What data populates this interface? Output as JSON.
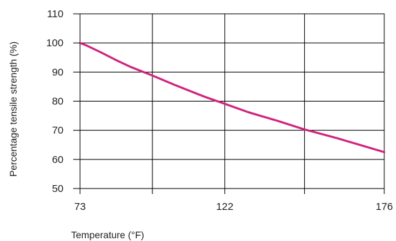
{
  "chart_data": {
    "type": "line",
    "title": "",
    "xlabel": "Temperature (°F)",
    "ylabel": "Percentage tensile strength (%)",
    "x_tick_labels": [
      "73",
      "122",
      "176"
    ],
    "x_ticks": [
      73,
      97.5,
      122,
      149,
      176
    ],
    "y_ticks": [
      50,
      60,
      70,
      80,
      90,
      100,
      110
    ],
    "xlim": [
      73,
      176
    ],
    "ylim": [
      50,
      110
    ],
    "grid": true,
    "series": [
      {
        "color": "#d0237e",
        "x": [
          73,
          75,
          80,
          85,
          90,
          97.5,
          105,
          115,
          122,
          130,
          140,
          149,
          160,
          170,
          176
        ],
        "y": [
          100,
          99.2,
          96.8,
          94.2,
          91.8,
          88.8,
          85.6,
          81.6,
          79.1,
          76.2,
          73.2,
          70.3,
          67.3,
          64.3,
          62.5
        ]
      }
    ]
  }
}
